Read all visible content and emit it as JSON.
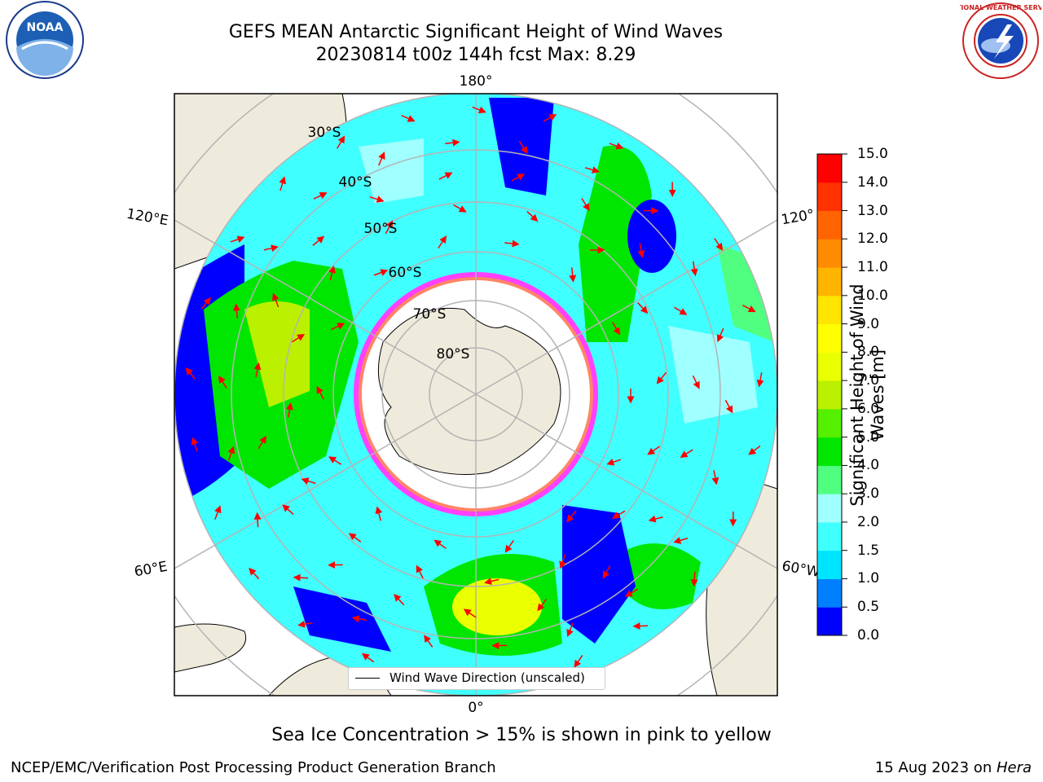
{
  "title": {
    "line1": "GEFS MEAN Antarctic Significant Height of Wind Waves",
    "line2": "20230814 t00z 144h fcst   Max: 8.29"
  },
  "logos": {
    "left": {
      "name": "noaa-logo",
      "text": "NOAA"
    },
    "right": {
      "name": "national-weather-service-logo",
      "text": "NATIONAL WEATHER SERVICE"
    }
  },
  "map": {
    "projection": "south-polar-stereographic",
    "meridian_labels": {
      "top": "180°",
      "bottom": "0°",
      "upper_left": "120°E",
      "lower_left": "60°E",
      "upper_right": "120°",
      "lower_right": "60°W"
    },
    "parallel_labels": [
      "30°S",
      "40°S",
      "50°S",
      "60°S",
      "70°S",
      "80°S"
    ],
    "colors": {
      "land": "#efebdc",
      "ice": "#ff40ff",
      "arrow": "#ff0000",
      "grid": "#b4b4b4"
    }
  },
  "legend": {
    "label": "Wind Wave Direction (unscaled)"
  },
  "colorbar": {
    "label": "Significant Height of Wind Waves [m]",
    "ticks": [
      "0.0",
      "0.5",
      "1.0",
      "1.5",
      "2.0",
      "3.0",
      "4.0",
      "5.0",
      "6.0",
      "7.0",
      "8.0",
      "9.0",
      "10.0",
      "11.0",
      "12.0",
      "13.0",
      "14.0",
      "15.0"
    ],
    "colors": [
      "#0000ff",
      "#0080ff",
      "#00e5ff",
      "#40ffff",
      "#a0ffff",
      "#50ff80",
      "#00e600",
      "#55f000",
      "#bbf000",
      "#eaff00",
      "#ffff00",
      "#ffe500",
      "#ffb400",
      "#ff8c00",
      "#ff6400",
      "#ff3200",
      "#ff0000"
    ]
  },
  "footnote": "Sea Ice Concentration > 15% is shown in pink to yellow",
  "credit": "NCEP/EMC/Verification Post Processing Product Generation Branch",
  "date": {
    "text": "15 Aug 2023 on ",
    "machine": "Hera"
  }
}
